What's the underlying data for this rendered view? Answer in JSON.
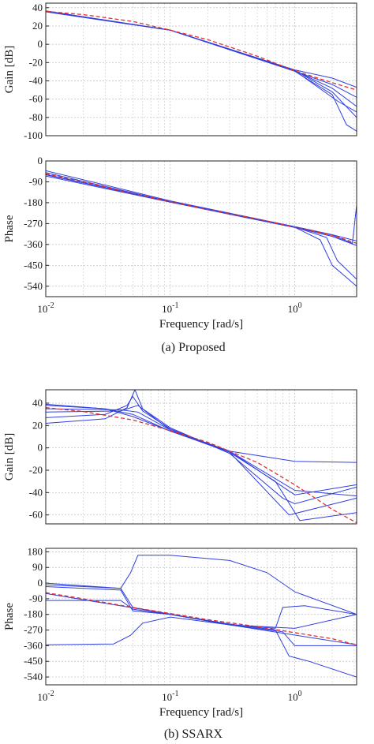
{
  "chart_data": [
    {
      "type": "line",
      "panel": "gain",
      "caption": "(a) Proposed",
      "xlabel": "Frequency [rad/s]",
      "ylabel": "Gain [dB]",
      "xscale": "log",
      "xlim": [
        0.01,
        3.14
      ],
      "ylim": [
        -100,
        45
      ],
      "yticks": [
        40,
        20,
        0,
        -20,
        -40,
        -60,
        -80,
        -100
      ],
      "grid": true,
      "colors": {
        "estimates": "#2f3fe0",
        "true": "#e03030"
      },
      "series": [
        {
          "style": "dashed-red",
          "x": [
            0.01,
            0.02,
            0.05,
            0.1,
            0.2,
            0.5,
            1.0,
            2.0,
            3.14
          ],
          "y": [
            36,
            32.5,
            25,
            15.5,
            5,
            -13,
            -29,
            -42,
            -50
          ]
        },
        {
          "style": "solid-blue",
          "x": [
            0.01,
            0.1,
            1.0,
            2.0,
            3.14
          ],
          "y": [
            36.5,
            15.6,
            -28,
            -37,
            -47
          ]
        },
        {
          "style": "solid-blue",
          "x": [
            0.01,
            0.1,
            1.0,
            2.0,
            3.14
          ],
          "y": [
            35.5,
            15.4,
            -29.5,
            -44,
            -58
          ]
        },
        {
          "style": "solid-blue",
          "x": [
            0.01,
            0.1,
            1.0,
            2.0,
            3.14
          ],
          "y": [
            36,
            15.5,
            -29,
            -48,
            -68
          ]
        },
        {
          "style": "solid-blue",
          "x": [
            0.01,
            0.1,
            1.0,
            2.0,
            3.14
          ],
          "y": [
            36.2,
            15.5,
            -28.5,
            -52,
            -80
          ]
        },
        {
          "style": "solid-blue",
          "x": [
            0.01,
            0.1,
            1.0,
            2.0,
            2.6,
            3.14
          ],
          "y": [
            35.8,
            15.5,
            -29.5,
            -55,
            -88,
            -95
          ]
        },
        {
          "style": "solid-blue",
          "x": [
            0.01,
            0.1,
            1.0,
            2.2,
            3.14
          ],
          "y": [
            36.1,
            15.5,
            -29,
            -62,
            -74
          ]
        }
      ]
    },
    {
      "type": "line",
      "panel": "phase",
      "caption": "(a) Proposed",
      "xlabel": "Frequency [rad/s]",
      "ylabel": "Phase",
      "xscale": "log",
      "xlim": [
        0.01,
        3.14
      ],
      "ylim": [
        -585,
        0
      ],
      "yticks": [
        0,
        -90,
        -180,
        -270,
        -360,
        -450,
        -540
      ],
      "xticks": [
        "10^-2",
        "10^-1",
        "10^0"
      ],
      "grid": true,
      "series": [
        {
          "style": "dashed-red",
          "x": [
            0.01,
            0.02,
            0.05,
            0.1,
            0.2,
            0.5,
            1.0,
            2.0,
            3.14
          ],
          "y": [
            -55,
            -90,
            -140,
            -175,
            -210,
            -250,
            -285,
            -320,
            -355
          ]
        },
        {
          "style": "solid-blue",
          "x": [
            0.01,
            0.1,
            1.0,
            2.0,
            3.14
          ],
          "y": [
            -42,
            -172,
            -283,
            -318,
            -345
          ]
        },
        {
          "style": "solid-blue",
          "x": [
            0.01,
            0.1,
            1.0,
            2.0,
            3.14
          ],
          "y": [
            -65,
            -178,
            -287,
            -325,
            -365
          ]
        },
        {
          "style": "solid-blue",
          "x": [
            0.01,
            0.1,
            1.0,
            2.0,
            2.9,
            3.14
          ],
          "y": [
            -50,
            -175,
            -285,
            -320,
            -355,
            -190
          ]
        },
        {
          "style": "solid-blue",
          "x": [
            0.01,
            0.1,
            1.0,
            1.6,
            2.0,
            3.14
          ],
          "y": [
            -58,
            -176,
            -286,
            -340,
            -450,
            -540
          ]
        },
        {
          "style": "solid-blue",
          "x": [
            0.01,
            0.1,
            1.0,
            1.8,
            2.2,
            3.14
          ],
          "y": [
            -60,
            -176,
            -285,
            -330,
            -430,
            -510
          ]
        }
      ]
    },
    {
      "type": "line",
      "panel": "gain",
      "caption": "(b) SSARX",
      "xlabel": "Frequency [rad/s]",
      "ylabel": "Gain [dB]",
      "xscale": "log",
      "xlim": [
        0.01,
        3.14
      ],
      "ylim": [
        -68,
        52
      ],
      "yticks": [
        40,
        20,
        0,
        -20,
        -40,
        -60
      ],
      "grid": true,
      "series": [
        {
          "style": "dashed-red",
          "x": [
            0.01,
            0.02,
            0.05,
            0.1,
            0.2,
            0.5,
            1.0,
            2.0,
            3.14
          ],
          "y": [
            36,
            32.5,
            25,
            15.5,
            5,
            -13,
            -33,
            -55,
            -67
          ]
        },
        {
          "style": "solid-blue",
          "x": [
            0.01,
            0.03,
            0.05,
            0.1,
            0.3,
            1.0,
            3.14
          ],
          "y": [
            39,
            35,
            30,
            15,
            -3,
            -12,
            -13
          ]
        },
        {
          "style": "solid-blue",
          "x": [
            0.01,
            0.03,
            0.045,
            0.052,
            0.06,
            0.1,
            0.3,
            0.8,
            1.0,
            3.14
          ],
          "y": [
            22,
            26,
            36,
            52,
            35,
            18,
            -5,
            -45,
            -50,
            -35
          ]
        },
        {
          "style": "solid-blue",
          "x": [
            0.01,
            0.03,
            0.045,
            0.05,
            0.06,
            0.1,
            0.3,
            0.9,
            3.14
          ],
          "y": [
            27,
            30,
            38,
            46,
            33,
            17,
            -4,
            -60,
            -45
          ]
        },
        {
          "style": "solid-blue",
          "x": [
            0.01,
            0.04,
            0.055,
            0.1,
            0.3,
            1.0,
            3.14
          ],
          "y": [
            32,
            33,
            38,
            16,
            -3,
            -42,
            -33
          ]
        },
        {
          "style": "solid-blue",
          "x": [
            0.01,
            0.04,
            0.055,
            0.1,
            0.3,
            1.0,
            3.14
          ],
          "y": [
            35,
            34,
            32,
            16,
            -3,
            -38,
            -43
          ]
        },
        {
          "style": "solid-blue",
          "x": [
            0.01,
            0.03,
            0.05,
            0.1,
            0.3,
            0.7,
            1.1,
            3.14
          ],
          "y": [
            38,
            35,
            28,
            15,
            -4,
            -30,
            -65,
            -58
          ]
        }
      ]
    },
    {
      "type": "line",
      "panel": "phase",
      "caption": "(b) SSARX",
      "xlabel": "Frequency [rad/s]",
      "ylabel": "Phase",
      "xscale": "log",
      "xlim": [
        0.01,
        3.14
      ],
      "ylim": [
        -585,
        200
      ],
      "yticks": [
        180,
        90,
        0,
        -90,
        -180,
        -270,
        -360,
        -450,
        -540
      ],
      "xticks": [
        "10^-2",
        "10^-1",
        "10^0"
      ],
      "grid": true,
      "series": [
        {
          "style": "dashed-red",
          "x": [
            0.01,
            0.02,
            0.05,
            0.1,
            0.2,
            0.5,
            1.0,
            2.0,
            3.14
          ],
          "y": [
            -55,
            -90,
            -140,
            -175,
            -210,
            -250,
            -285,
            -320,
            -355
          ]
        },
        {
          "style": "solid-blue",
          "x": [
            0.01,
            0.04,
            0.048,
            0.055,
            0.1,
            0.3,
            0.6,
            1.0,
            3.14
          ],
          "y": [
            0,
            -30,
            60,
            160,
            160,
            130,
            60,
            -50,
            -180
          ]
        },
        {
          "style": "solid-blue",
          "x": [
            0.01,
            0.035,
            0.048,
            0.06,
            0.1,
            0.3,
            3.14
          ],
          "y": [
            -355,
            -350,
            -300,
            -230,
            -195,
            -240,
            -355
          ]
        },
        {
          "style": "solid-blue",
          "x": [
            0.01,
            0.04,
            0.05,
            0.1,
            0.3,
            0.7,
            0.8,
            1.2,
            3.14
          ],
          "y": [
            -10,
            -30,
            -140,
            -180,
            -240,
            -260,
            -140,
            -130,
            -180
          ]
        },
        {
          "style": "solid-blue",
          "x": [
            0.01,
            0.04,
            0.05,
            0.1,
            0.3,
            0.7,
            0.9,
            1.3,
            3.14
          ],
          "y": [
            -20,
            -40,
            -160,
            -180,
            -235,
            -270,
            -420,
            -450,
            -540
          ]
        },
        {
          "style": "solid-blue",
          "x": [
            0.01,
            0.1,
            0.3,
            0.8,
            1.0,
            3.14
          ],
          "y": [
            -60,
            -178,
            -240,
            -280,
            -360,
            -360
          ]
        },
        {
          "style": "solid-blue",
          "x": [
            0.01,
            0.04,
            0.05,
            0.1,
            0.3,
            1.0,
            3.14
          ],
          "y": [
            -100,
            -100,
            -150,
            -180,
            -240,
            -260,
            -180
          ]
        }
      ]
    }
  ]
}
